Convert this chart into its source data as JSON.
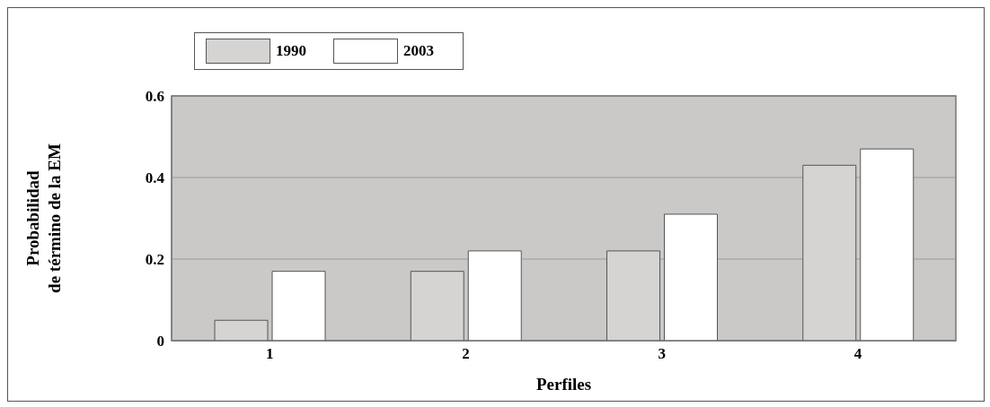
{
  "chart_data": {
    "type": "bar",
    "xlabel": "Perfiles",
    "ylabel": "Probabilidad\nde término de la EM",
    "categories": [
      "1",
      "2",
      "3",
      "4"
    ],
    "series": [
      {
        "name": "1990",
        "color": "#d5d4d2",
        "values": [
          0.05,
          0.17,
          0.22,
          0.43
        ]
      },
      {
        "name": "2003",
        "color": "#ffffff",
        "values": [
          0.17,
          0.22,
          0.31,
          0.47
        ]
      }
    ],
    "ylim": [
      0,
      0.6
    ],
    "yticks": [
      0,
      0.2,
      0.4,
      0.6
    ],
    "grid": "y",
    "legend": "top left"
  }
}
